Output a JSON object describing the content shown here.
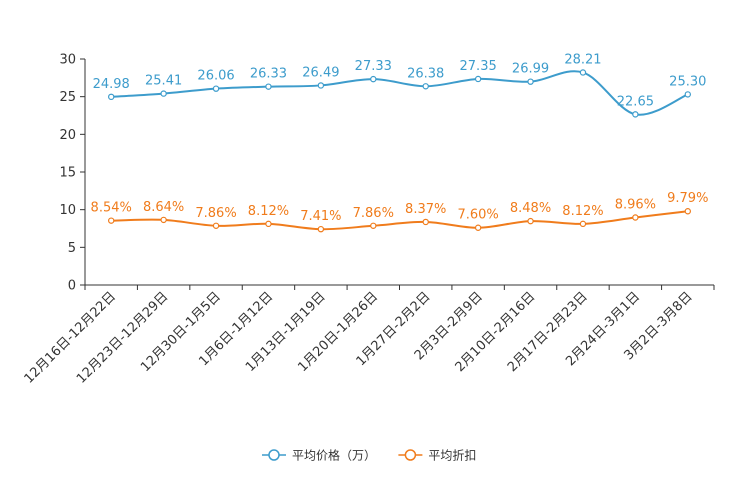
{
  "chart_data": {
    "type": "line",
    "title": "",
    "xlabel": "",
    "ylabel": "",
    "ylim": [
      0,
      30
    ],
    "yticks": [
      0,
      5,
      10,
      15,
      20,
      25,
      30
    ],
    "grid": false,
    "legend_position": "bottom-center",
    "categories": [
      "12月16日-12月22日",
      "12月23日-12月29日",
      "12月30日-1月5日",
      "1月6日-1月12日",
      "1月13日-1月19日",
      "1月20日-1月26日",
      "1月27日-2月2日",
      "2月3日-2月9日",
      "2月10日-2月16日",
      "2月17日-2月23日",
      "2月24日-3月1日",
      "3月2日-3月8日"
    ],
    "series": [
      {
        "name": "平均价格（万）",
        "color": "#3d9ccc",
        "values": [
          24.98,
          25.41,
          26.06,
          26.33,
          26.49,
          27.33,
          26.38,
          27.35,
          26.99,
          28.21,
          22.65,
          25.3
        ],
        "labels": [
          "24.98",
          "25.41",
          "26.06",
          "26.33",
          "26.49",
          "27.33",
          "26.38",
          "27.35",
          "26.99",
          "28.21",
          "22.65",
          "25.30"
        ]
      },
      {
        "name": "平均折扣",
        "color": "#f07c1c",
        "values": [
          8.54,
          8.64,
          7.86,
          8.12,
          7.41,
          7.86,
          8.37,
          7.6,
          8.48,
          8.12,
          8.96,
          9.79
        ],
        "labels": [
          "8.54%",
          "8.64%",
          "7.86%",
          "8.12%",
          "7.41%",
          "7.86%",
          "8.37%",
          "7.60%",
          "8.48%",
          "8.12%",
          "8.96%",
          "9.79%"
        ]
      }
    ]
  }
}
